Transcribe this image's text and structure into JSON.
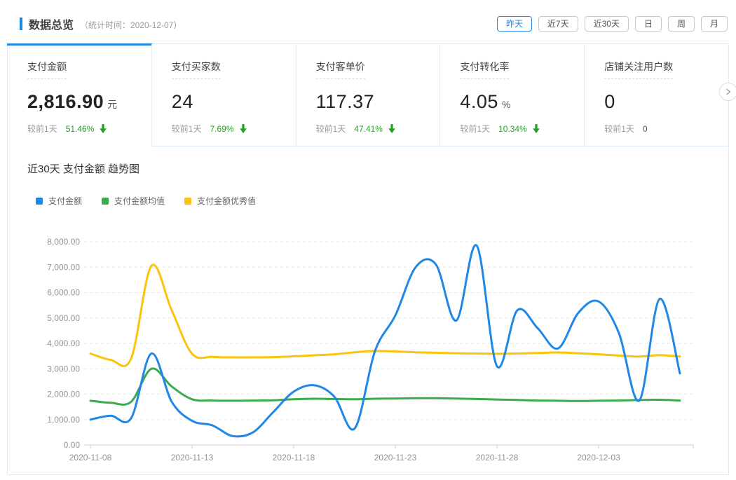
{
  "header": {
    "title": "数据总览",
    "subtitle": "（统计时间：2020-12-07）",
    "range_buttons": [
      {
        "label": "昨天",
        "active": true
      },
      {
        "label": "近7天",
        "active": false
      },
      {
        "label": "近30天",
        "active": false
      },
      {
        "label": "日",
        "active": false
      },
      {
        "label": "周",
        "active": false
      },
      {
        "label": "月",
        "active": false
      }
    ]
  },
  "cards": [
    {
      "title": "支付金额",
      "value": "2,816.90",
      "unit": "元",
      "compare_label": "较前1天",
      "change": "51.46%",
      "direction": "down",
      "active": true
    },
    {
      "title": "支付买家数",
      "value": "24",
      "unit": "",
      "compare_label": "较前1天",
      "change": "7.69%",
      "direction": "down",
      "active": false
    },
    {
      "title": "支付客单价",
      "value": "117.37",
      "unit": "",
      "compare_label": "较前1天",
      "change": "47.41%",
      "direction": "down",
      "active": false
    },
    {
      "title": "支付转化率",
      "value": "4.05",
      "unit": "%",
      "compare_label": "较前1天",
      "change": "10.34%",
      "direction": "down",
      "active": false
    },
    {
      "title": "店铺关注用户数",
      "value": "0",
      "unit": "",
      "compare_label": "较前1天",
      "change": "0",
      "direction": "none",
      "active": false
    }
  ],
  "carousel": {
    "next_icon": "chevron-right"
  },
  "chart": {
    "title": "近30天 支付金额 趋势图"
  },
  "chart_data": {
    "type": "line",
    "title": "近30天 支付金额 趋势图",
    "grid": true,
    "smooth": true,
    "legend_position": "top-left",
    "ylim": [
      0,
      8000
    ],
    "y_ticks": [
      "8,000.00",
      "7,000.00",
      "6,000.00",
      "5,000.00",
      "4,000.00",
      "3,000.00",
      "2,000.00",
      "1,000.00",
      "0.00"
    ],
    "x_tick_labels": [
      "2020-11-08",
      "2020-11-13",
      "2020-11-18",
      "2020-11-23",
      "2020-11-28",
      "2020-12-03"
    ],
    "x": [
      "2020-11-08",
      "2020-11-09",
      "2020-11-10",
      "2020-11-11",
      "2020-11-12",
      "2020-11-13",
      "2020-11-14",
      "2020-11-15",
      "2020-11-16",
      "2020-11-17",
      "2020-11-18",
      "2020-11-19",
      "2020-11-20",
      "2020-11-21",
      "2020-11-22",
      "2020-11-23",
      "2020-11-24",
      "2020-11-25",
      "2020-11-26",
      "2020-11-27",
      "2020-11-28",
      "2020-11-29",
      "2020-11-30",
      "2020-12-01",
      "2020-12-02",
      "2020-12-03",
      "2020-12-04",
      "2020-12-05",
      "2020-12-06",
      "2020-12-07"
    ],
    "series": [
      {
        "name": "支付金额",
        "color": "#1e87e8",
        "values": [
          1000,
          1150,
          1050,
          3600,
          1700,
          950,
          770,
          350,
          500,
          1300,
          2100,
          2350,
          1900,
          650,
          3700,
          5100,
          7000,
          7100,
          4900,
          7850,
          3100,
          5300,
          4600,
          3800,
          5200,
          5650,
          4400,
          1750,
          5750,
          2816.9
        ]
      },
      {
        "name": "支付金额均值",
        "color": "#3cab4e",
        "values": [
          1740,
          1660,
          1700,
          3000,
          2300,
          1800,
          1750,
          1740,
          1750,
          1760,
          1800,
          1820,
          1810,
          1800,
          1820,
          1830,
          1840,
          1840,
          1830,
          1810,
          1790,
          1770,
          1750,
          1740,
          1730,
          1740,
          1750,
          1770,
          1780,
          1750
        ]
      },
      {
        "name": "支付金额优秀值",
        "color": "#fbc30b",
        "values": [
          3600,
          3350,
          3400,
          7050,
          5300,
          3590,
          3470,
          3450,
          3450,
          3460,
          3490,
          3530,
          3570,
          3650,
          3700,
          3680,
          3650,
          3630,
          3610,
          3600,
          3590,
          3600,
          3620,
          3640,
          3610,
          3570,
          3520,
          3480,
          3540,
          3480
        ]
      }
    ]
  },
  "colors": {
    "accent_blue": "#1e87e8",
    "change_green": "#21a321",
    "grid_line": "#e6e6e6",
    "axis_line": "#cccccc"
  }
}
